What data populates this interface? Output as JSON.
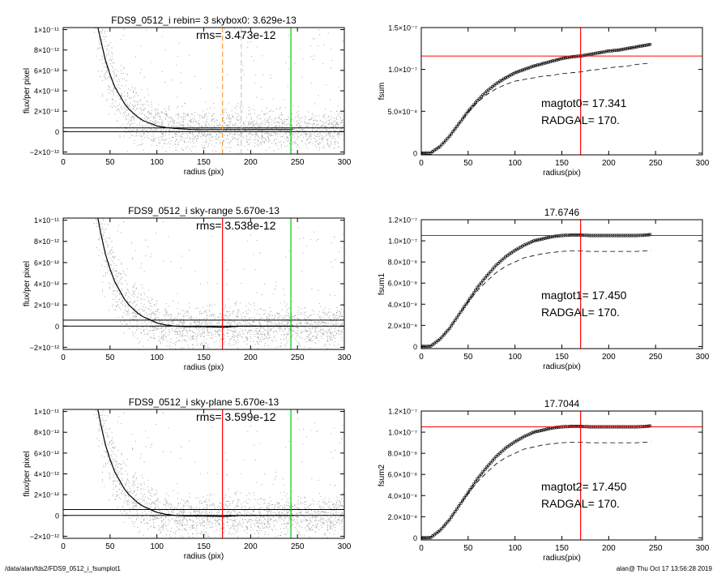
{
  "footer": {
    "left": "/data/alan/fds2/FDS9_0512_i_fsumplot1",
    "right": "alan@  Thu Oct 17 13:56:28 2019"
  },
  "colors": {
    "scatter": "#a6a6a6",
    "red": "#ff0000",
    "green": "#00cc00",
    "orange": "#ff9933",
    "grey_dash": "#cccccc"
  },
  "chart_data": [
    {
      "type": "scatter",
      "panel": "left-1",
      "title": "FDS9_0512_i rebin= 3    skybox0:  3.629e-13",
      "annotation": "rms= 3.473e-12",
      "xlabel": "radius (pix)",
      "ylabel": "flux/per pixel",
      "xlim": [
        0,
        300
      ],
      "ylim": [
        -2.2e-12,
        1.02e-11
      ],
      "xticks": [
        "0",
        "50",
        "100",
        "150",
        "200",
        "250",
        "300"
      ],
      "yticks": [
        {
          "value": -2e-12,
          "label": "−2×10⁻¹²"
        },
        {
          "value": 0,
          "label": "0"
        },
        {
          "value": 2e-12,
          "label": "2×10⁻¹²"
        },
        {
          "value": 4e-12,
          "label": "4×10⁻¹²"
        },
        {
          "value": 6e-12,
          "label": "6×10⁻¹²"
        },
        {
          "value": 8e-12,
          "label": "8×10⁻¹²"
        },
        {
          "value": 1e-11,
          "label": "1×10⁻¹¹"
        }
      ],
      "profile": {
        "x": [
          37,
          40,
          45,
          50,
          55,
          60,
          65,
          70,
          75,
          80,
          85,
          90,
          95,
          100,
          110,
          120,
          130,
          140,
          150,
          170,
          190,
          210,
          230,
          245
        ],
        "y": [
          1.02e-11,
          9e-12,
          7e-12,
          5.6e-12,
          4.4e-12,
          3.6e-12,
          2.8e-12,
          2.2e-12,
          1.8e-12,
          1.4e-12,
          1.1e-12,
          9e-13,
          7.5e-13,
          5.5e-13,
          4e-13,
          3e-13,
          2.5e-13,
          2e-13,
          2e-13,
          2e-13,
          2e-13,
          2e-13,
          2e-13,
          2e-13
        ]
      },
      "hlines": [
        {
          "y": 3.63e-13,
          "color": "#000000"
        },
        {
          "y": 0,
          "color": "#000000"
        }
      ],
      "vlines": [
        {
          "x": 170,
          "color": "#ff9933",
          "dashed": true
        },
        {
          "x": 190,
          "color": "#cccccc",
          "dashed": true
        },
        {
          "x": 243,
          "color": "#00cc00",
          "dashed": false
        }
      ]
    },
    {
      "type": "line",
      "panel": "right-1",
      "title": "",
      "annotation_lines": [
        "magtot0=  17.341",
        "RADGAL=    170."
      ],
      "xlabel": "radius(pix)",
      "ylabel": "fsum",
      "xlim": [
        0,
        300
      ],
      "ylim": [
        -2e-09,
        1.5e-07
      ],
      "xticks": [
        "0",
        "50",
        "100",
        "150",
        "200",
        "250",
        "300"
      ],
      "yticks": [
        {
          "value": 0,
          "label": "0"
        },
        {
          "value": 5e-08,
          "label": "5.0×10⁻⁸"
        },
        {
          "value": 1e-07,
          "label": "1.0×10⁻⁷"
        },
        {
          "value": 1.5e-07,
          "label": "1.5×10⁻⁷"
        }
      ],
      "series": [
        {
          "style": "circles",
          "x": [
            0,
            10,
            20,
            30,
            40,
            50,
            60,
            70,
            80,
            90,
            100,
            110,
            120,
            130,
            140,
            150,
            160,
            170,
            180,
            190,
            200,
            210,
            220,
            230,
            240,
            245
          ],
          "y": [
            0,
            3e-10,
            8e-09,
            2e-08,
            3.5e-08,
            5e-08,
            6.3e-08,
            7.4e-08,
            8.3e-08,
            9e-08,
            9.6e-08,
            1e-07,
            1.04e-07,
            1.07e-07,
            1.1e-07,
            1.13e-07,
            1.15e-07,
            1.16e-07,
            1.18e-07,
            1.2e-07,
            1.22e-07,
            1.23e-07,
            1.25e-07,
            1.27e-07,
            1.29e-07,
            1.3e-07
          ]
        },
        {
          "style": "dashed",
          "x": [
            0,
            10,
            20,
            30,
            40,
            50,
            60,
            70,
            80,
            90,
            100,
            110,
            120,
            130,
            140,
            150,
            160,
            170,
            180,
            190,
            200,
            210,
            220,
            230,
            240,
            245
          ],
          "y": [
            0,
            3e-10,
            8e-09,
            2e-08,
            3.5e-08,
            4.9e-08,
            6.1e-08,
            7e-08,
            7.7e-08,
            8.2e-08,
            8.6e-08,
            8.8e-08,
            9e-08,
            9.2e-08,
            9.3e-08,
            9.5e-08,
            9.6e-08,
            9.7e-08,
            9.9e-08,
            1e-07,
            1.02e-07,
            1.03e-07,
            1.04e-07,
            1.06e-07,
            1.07e-07,
            1.08e-07
          ]
        }
      ],
      "hlines": [
        {
          "y": 1.16e-07,
          "color": "#ff0000"
        }
      ],
      "vlines": [
        {
          "x": 170,
          "color": "#ff0000",
          "dashed": false
        }
      ]
    },
    {
      "type": "scatter",
      "panel": "left-2",
      "title": "FDS9_0512_i sky-range  5.670e-13",
      "annotation": "rms= 3.538e-12",
      "xlabel": "radius (pix)",
      "ylabel": "flux/per pixel",
      "xlim": [
        0,
        300
      ],
      "ylim": [
        -2.2e-12,
        1.02e-11
      ],
      "xticks": [
        "0",
        "50",
        "100",
        "150",
        "200",
        "250",
        "300"
      ],
      "yticks": [
        {
          "value": -2e-12,
          "label": "−2×10⁻¹²"
        },
        {
          "value": 0,
          "label": "0"
        },
        {
          "value": 2e-12,
          "label": "2×10⁻¹²"
        },
        {
          "value": 4e-12,
          "label": "4×10⁻¹²"
        },
        {
          "value": 6e-12,
          "label": "6×10⁻¹²"
        },
        {
          "value": 8e-12,
          "label": "8×10⁻¹²"
        },
        {
          "value": 1e-11,
          "label": "1×10⁻¹¹"
        }
      ],
      "profile": {
        "x": [
          37,
          40,
          45,
          50,
          55,
          60,
          65,
          70,
          75,
          80,
          85,
          90,
          95,
          100,
          110,
          120,
          130,
          140,
          150,
          170,
          190,
          210,
          230,
          245
        ],
        "y": [
          1.02e-11,
          8.8e-12,
          6.8e-12,
          5.4e-12,
          4.2e-12,
          3.4e-12,
          2.6e-12,
          2e-12,
          1.6e-12,
          1.2e-12,
          9e-13,
          7e-13,
          5e-13,
          3e-13,
          1e-13,
          0,
          -5e-14,
          -5e-14,
          -5e-14,
          -1e-13,
          0,
          0,
          0,
          0
        ]
      },
      "hlines": [
        {
          "y": 5.67e-13,
          "color": "#000000"
        },
        {
          "y": 0,
          "color": "#000000"
        }
      ],
      "vlines": [
        {
          "x": 170,
          "color": "#ff0000",
          "dashed": false
        },
        {
          "x": 243,
          "color": "#00cc00",
          "dashed": false
        }
      ]
    },
    {
      "type": "line",
      "panel": "right-2",
      "title": "17.6746",
      "annotation_lines": [
        "magtot1=  17.450",
        "RADGAL=    170."
      ],
      "xlabel": "radius(pix)",
      "ylabel": "fsum1",
      "xlim": [
        0,
        300
      ],
      "ylim": [
        -2e-09,
        1.2e-07
      ],
      "xticks": [
        "0",
        "50",
        "100",
        "150",
        "200",
        "250",
        "300"
      ],
      "yticks": [
        {
          "value": 0,
          "label": "0"
        },
        {
          "value": 2e-08,
          "label": "2.0×10⁻⁸"
        },
        {
          "value": 4e-08,
          "label": "4.0×10⁻⁸"
        },
        {
          "value": 6e-08,
          "label": "6.0×10⁻⁸"
        },
        {
          "value": 8e-08,
          "label": "8.0×10⁻⁸"
        },
        {
          "value": 1e-07,
          "label": "1.0×10⁻⁷"
        },
        {
          "value": 1.2e-07,
          "label": "1.2×10⁻⁷"
        }
      ],
      "series": [
        {
          "style": "circles",
          "x": [
            0,
            10,
            20,
            30,
            40,
            50,
            60,
            70,
            80,
            90,
            100,
            110,
            120,
            130,
            140,
            150,
            160,
            170,
            180,
            190,
            200,
            210,
            220,
            230,
            240,
            245
          ],
          "y": [
            0,
            3e-10,
            7e-09,
            1.7e-08,
            3e-08,
            4.3e-08,
            5.6e-08,
            6.7e-08,
            7.7e-08,
            8.5e-08,
            9.1e-08,
            9.6e-08,
            1e-07,
            1.02e-07,
            1.04e-07,
            1.05e-07,
            1.055e-07,
            1.055e-07,
            1.05e-07,
            1.05e-07,
            1.05e-07,
            1.05e-07,
            1.05e-07,
            1.05e-07,
            1.055e-07,
            1.06e-07
          ]
        },
        {
          "style": "dashed",
          "x": [
            0,
            10,
            20,
            30,
            40,
            50,
            60,
            70,
            80,
            90,
            100,
            110,
            120,
            130,
            140,
            150,
            160,
            170,
            180,
            190,
            200,
            210,
            220,
            230,
            240,
            245
          ],
          "y": [
            0,
            3e-10,
            7e-09,
            1.7e-08,
            3e-08,
            4.2e-08,
            5.3e-08,
            6.2e-08,
            7e-08,
            7.6e-08,
            8e-08,
            8.4e-08,
            8.6e-08,
            8.8e-08,
            8.9e-08,
            9e-08,
            9.05e-08,
            9.05e-08,
            9e-08,
            9e-08,
            9e-08,
            9e-08,
            9e-08,
            9e-08,
            9.05e-08,
            9.1e-08
          ]
        }
      ],
      "hlines": [
        {
          "y": 1.05e-07,
          "color": "#ff0000"
        }
      ],
      "vlines": [
        {
          "x": 170,
          "color": "#ff0000",
          "dashed": false
        }
      ]
    },
    {
      "type": "scatter",
      "panel": "left-3",
      "title": "FDS9_0512_i sky-plane  5.670e-13",
      "annotation": "rms= 3.599e-12",
      "xlabel": "radius (pix)",
      "ylabel": "flux/per pixel",
      "xlim": [
        0,
        300
      ],
      "ylim": [
        -2.2e-12,
        1.02e-11
      ],
      "xticks": [
        "0",
        "50",
        "100",
        "150",
        "200",
        "250",
        "300"
      ],
      "yticks": [
        {
          "value": -2e-12,
          "label": "−2×10⁻¹²"
        },
        {
          "value": 0,
          "label": "0"
        },
        {
          "value": 2e-12,
          "label": "2×10⁻¹²"
        },
        {
          "value": 4e-12,
          "label": "4×10⁻¹²"
        },
        {
          "value": 6e-12,
          "label": "6×10⁻¹²"
        },
        {
          "value": 8e-12,
          "label": "8×10⁻¹²"
        },
        {
          "value": 1e-11,
          "label": "1×10⁻¹¹"
        }
      ],
      "profile": {
        "x": [
          37,
          40,
          45,
          50,
          55,
          60,
          65,
          70,
          75,
          80,
          85,
          90,
          95,
          100,
          110,
          120,
          130,
          140,
          150,
          170,
          190,
          210,
          230,
          245
        ],
        "y": [
          1.02e-11,
          8.8e-12,
          6.8e-12,
          5.4e-12,
          4.2e-12,
          3.4e-12,
          2.6e-12,
          2e-12,
          1.6e-12,
          1.2e-12,
          9e-13,
          7e-13,
          5e-13,
          3e-13,
          1e-13,
          0,
          -5e-14,
          -5e-14,
          -5e-14,
          -1e-13,
          0,
          0,
          0,
          0
        ]
      },
      "hlines": [
        {
          "y": 5.67e-13,
          "color": "#000000"
        },
        {
          "y": 0,
          "color": "#000000"
        }
      ],
      "vlines": [
        {
          "x": 170,
          "color": "#ff0000",
          "dashed": false
        },
        {
          "x": 243,
          "color": "#00cc00",
          "dashed": false
        }
      ]
    },
    {
      "type": "line",
      "panel": "right-3",
      "title": "17.7044",
      "annotation_lines": [
        "magtot2=  17.450",
        "RADGAL=    170."
      ],
      "xlabel": "radius(pix)",
      "ylabel": "fsum2",
      "xlim": [
        0,
        300
      ],
      "ylim": [
        -2e-09,
        1.2e-07
      ],
      "xticks": [
        "0",
        "50",
        "100",
        "150",
        "200",
        "250",
        "300"
      ],
      "yticks": [
        {
          "value": 0,
          "label": "0"
        },
        {
          "value": 2e-08,
          "label": "2.0×10⁻⁸"
        },
        {
          "value": 4e-08,
          "label": "4.0×10⁻⁸"
        },
        {
          "value": 6e-08,
          "label": "6.0×10⁻⁸"
        },
        {
          "value": 8e-08,
          "label": "8.0×10⁻⁸"
        },
        {
          "value": 1e-07,
          "label": "1.0×10⁻⁷"
        },
        {
          "value": 1.2e-07,
          "label": "1.2×10⁻⁷"
        }
      ],
      "series": [
        {
          "style": "circles",
          "x": [
            0,
            10,
            20,
            30,
            40,
            50,
            60,
            70,
            80,
            90,
            100,
            110,
            120,
            130,
            140,
            150,
            160,
            170,
            180,
            190,
            200,
            210,
            220,
            230,
            240,
            245
          ],
          "y": [
            0,
            3e-10,
            7e-09,
            1.7e-08,
            3e-08,
            4.3e-08,
            5.6e-08,
            6.7e-08,
            7.7e-08,
            8.5e-08,
            9.1e-08,
            9.6e-08,
            1e-07,
            1.02e-07,
            1.04e-07,
            1.05e-07,
            1.055e-07,
            1.055e-07,
            1.05e-07,
            1.05e-07,
            1.05e-07,
            1.05e-07,
            1.05e-07,
            1.05e-07,
            1.055e-07,
            1.06e-07
          ]
        },
        {
          "style": "dashed",
          "x": [
            0,
            10,
            20,
            30,
            40,
            50,
            60,
            70,
            80,
            90,
            100,
            110,
            120,
            130,
            140,
            150,
            160,
            170,
            180,
            190,
            200,
            210,
            220,
            230,
            240,
            245
          ],
          "y": [
            0,
            3e-10,
            7e-09,
            1.7e-08,
            3e-08,
            4.2e-08,
            5.3e-08,
            6.2e-08,
            7e-08,
            7.6e-08,
            8e-08,
            8.4e-08,
            8.6e-08,
            8.8e-08,
            8.9e-08,
            9e-08,
            9.05e-08,
            9.05e-08,
            9e-08,
            9e-08,
            9e-08,
            9e-08,
            9e-08,
            9e-08,
            9.05e-08,
            9.1e-08
          ]
        }
      ],
      "hlines": [
        {
          "y": 1.05e-07,
          "color": "#ff0000"
        }
      ],
      "vlines": [
        {
          "x": 170,
          "color": "#ff0000",
          "dashed": false
        }
      ]
    }
  ]
}
